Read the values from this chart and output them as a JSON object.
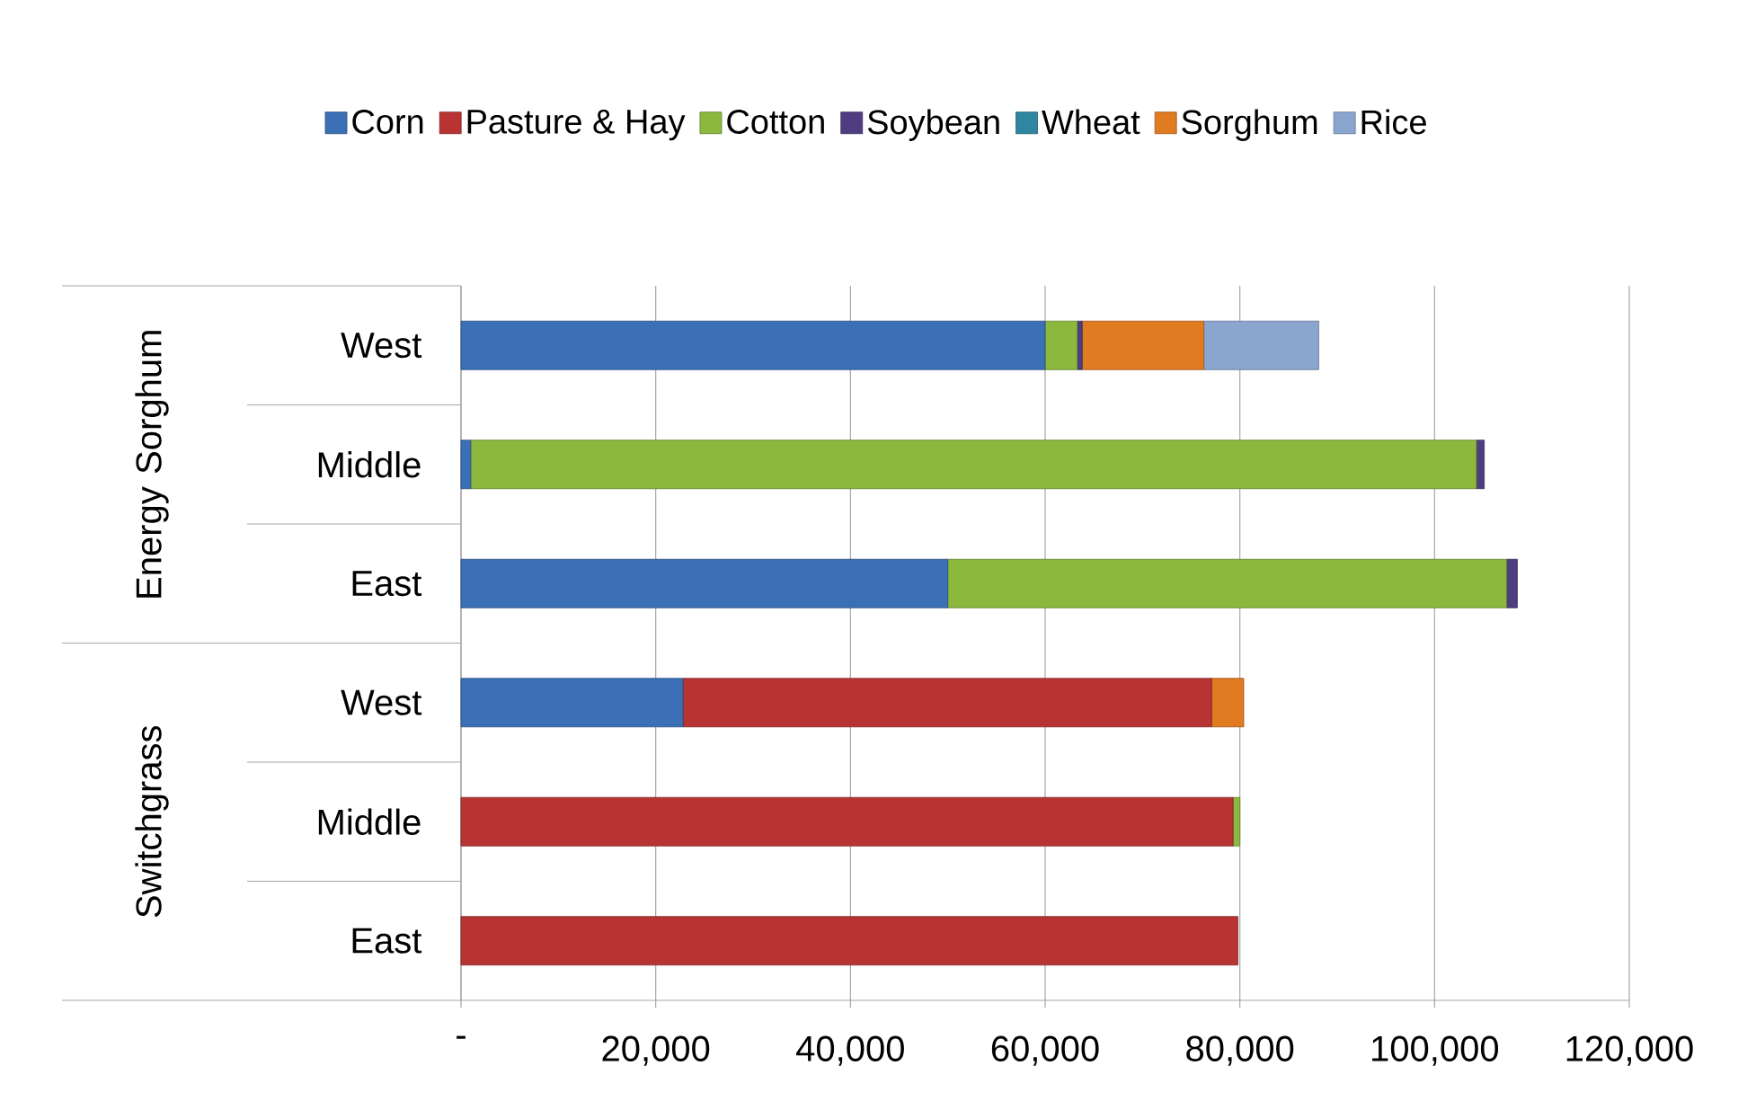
{
  "chart_data": {
    "type": "bar",
    "orientation": "horizontal",
    "stacked": true,
    "categories": [
      "West",
      "Middle",
      "East",
      "West",
      "Middle",
      "East"
    ],
    "annotations": [
      "Energy Sorghum",
      "Switchgrass"
    ],
    "series": [
      {
        "name": "Corn",
        "color": "#3b70b6",
        "values": [
          60000,
          1000,
          50000,
          22800,
          null,
          null
        ]
      },
      {
        "name": "Pasture & Hay",
        "color": "#b83434",
        "values": [
          null,
          null,
          null,
          54300,
          79300,
          79800
        ]
      },
      {
        "name": "Cotton",
        "color": "#8cb83e",
        "values": [
          3300,
          103300,
          57400,
          null,
          700,
          null
        ]
      },
      {
        "name": "Soybean",
        "color": "#4e3d80",
        "values": [
          500,
          800,
          1100,
          null,
          null,
          null
        ]
      },
      {
        "name": "Wheat",
        "color": "#2f86a0",
        "values": [
          null,
          null,
          null,
          null,
          null,
          null
        ]
      },
      {
        "name": "Sorghum",
        "color": "#e07b22",
        "values": [
          12500,
          null,
          null,
          3300,
          null,
          null
        ]
      },
      {
        "name": "Rice",
        "color": "#8aa6cf",
        "values": [
          11800,
          null,
          null,
          null,
          null,
          null
        ]
      }
    ],
    "xlim": [
      0,
      120000
    ],
    "xticks": [
      {
        "value": 0,
        "label": "-"
      },
      {
        "value": 20000,
        "label": "20,000"
      },
      {
        "value": 40000,
        "label": "40,000"
      },
      {
        "value": 60000,
        "label": "60,000"
      },
      {
        "value": 80000,
        "label": "80,000"
      },
      {
        "value": 100000,
        "label": "100,000"
      },
      {
        "value": 120000,
        "label": "120,000"
      }
    ],
    "grid": "x",
    "legend": "top"
  }
}
